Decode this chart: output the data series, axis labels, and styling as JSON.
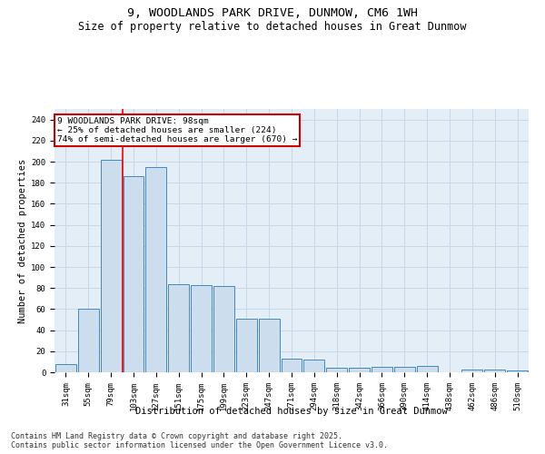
{
  "title_line1": "9, WOODLANDS PARK DRIVE, DUNMOW, CM6 1WH",
  "title_line2": "Size of property relative to detached houses in Great Dunmow",
  "xlabel": "Distribution of detached houses by size in Great Dunmow",
  "ylabel": "Number of detached properties",
  "bar_color": "#ccdded",
  "bar_edge_color": "#4488bb",
  "categories": [
    "31sqm",
    "55sqm",
    "79sqm",
    "103sqm",
    "127sqm",
    "151sqm",
    "175sqm",
    "199sqm",
    "223sqm",
    "247sqm",
    "271sqm",
    "294sqm",
    "318sqm",
    "342sqm",
    "366sqm",
    "390sqm",
    "414sqm",
    "438sqm",
    "462sqm",
    "486sqm",
    "510sqm"
  ],
  "values": [
    8,
    60,
    202,
    186,
    195,
    84,
    83,
    82,
    51,
    51,
    13,
    12,
    4,
    4,
    5,
    5,
    6,
    0,
    3,
    3,
    2
  ],
  "ylim": [
    0,
    250
  ],
  "yticks": [
    0,
    20,
    40,
    60,
    80,
    100,
    120,
    140,
    160,
    180,
    200,
    220,
    240
  ],
  "annotation_line1": "9 WOODLANDS PARK DRIVE: 98sqm",
  "annotation_line2": "← 25% of detached houses are smaller (224)",
  "annotation_line3": "74% of semi-detached houses are larger (670) →",
  "vline_x": 2.5,
  "grid_color": "#c8d8e8",
  "background_color": "#e4eef6",
  "footer_line1": "Contains HM Land Registry data © Crown copyright and database right 2025.",
  "footer_line2": "Contains public sector information licensed under the Open Government Licence v3.0.",
  "annotation_box_color": "#cc0000",
  "title_fontsize": 9.5,
  "subtitle_fontsize": 8.5,
  "axis_label_fontsize": 7.5,
  "tick_fontsize": 6.5,
  "annotation_fontsize": 6.8,
  "footer_fontsize": 6
}
